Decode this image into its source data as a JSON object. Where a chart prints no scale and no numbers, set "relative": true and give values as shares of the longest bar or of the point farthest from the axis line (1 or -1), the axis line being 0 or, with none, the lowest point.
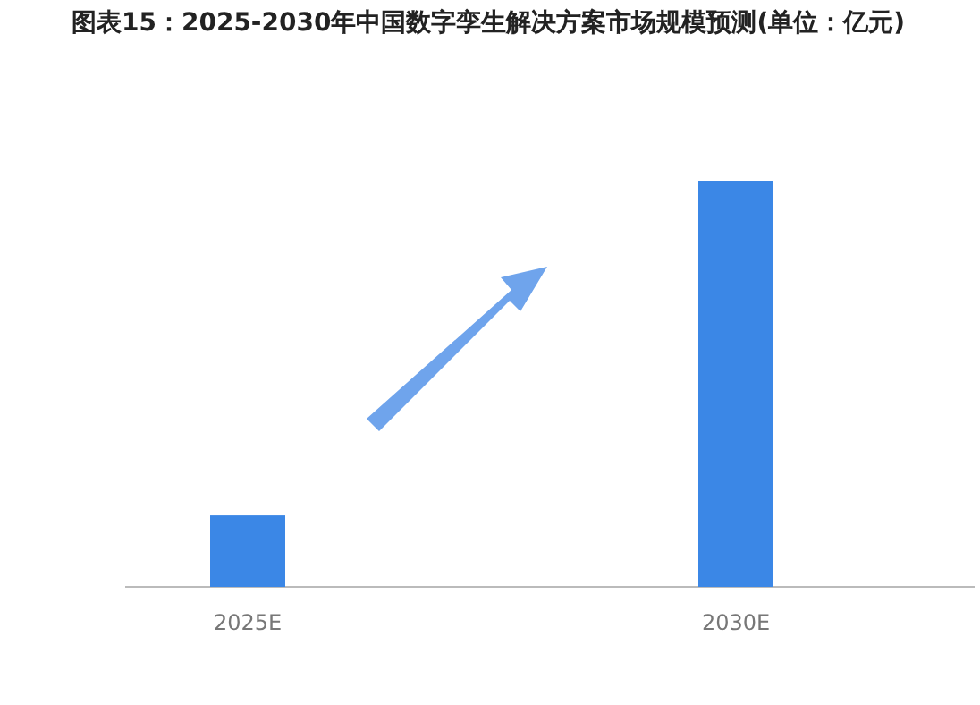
{
  "chart_data": {
    "type": "bar",
    "title": "图表15：2025-2030年中国数字孪生解决方案市场规模预测(单位：亿元)",
    "relative": true,
    "categories": [
      "2025E",
      "2030E"
    ],
    "values": [
      0.176,
      1
    ],
    "color": "#3b87e6"
  }
}
